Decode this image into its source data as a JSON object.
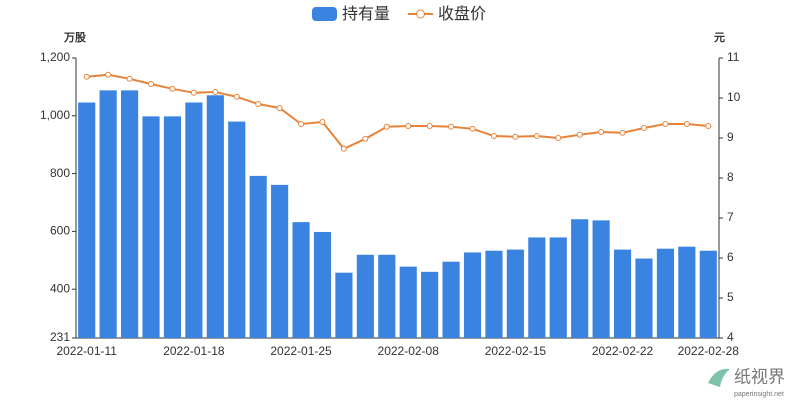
{
  "chart_data": {
    "type": "bar-line",
    "legend": [
      "持有量",
      "收盘价"
    ],
    "y_axis_title": "万股",
    "y2_axis_title": "元",
    "categories": [
      "2022-01-11",
      null,
      null,
      null,
      null,
      "2022-01-18",
      null,
      null,
      null,
      null,
      "2022-01-25",
      null,
      null,
      null,
      null,
      "2022-02-08",
      null,
      null,
      null,
      null,
      "2022-02-15",
      null,
      null,
      null,
      null,
      "2022-02-22",
      null,
      null,
      null,
      "2022-02-28"
    ],
    "series": [
      {
        "name": "持有量",
        "type": "bar",
        "color": "#3a83e0",
        "values": [
          1046,
          1088,
          1088,
          998,
          998,
          1046,
          1071,
          980,
          792,
          761,
          632,
          598,
          457,
          519,
          519,
          478,
          460,
          495,
          527,
          533,
          537,
          579,
          579,
          642,
          638,
          537,
          506,
          540,
          547,
          533
        ]
      },
      {
        "name": "收盘价",
        "type": "line",
        "axis": "y2",
        "color": "#e8833a",
        "values": [
          10.53,
          10.58,
          10.48,
          10.35,
          10.23,
          10.13,
          10.15,
          10.03,
          9.85,
          9.75,
          9.35,
          9.4,
          8.73,
          8.98,
          9.28,
          9.3,
          9.3,
          9.28,
          9.23,
          9.05,
          9.03,
          9.05,
          9.0,
          9.08,
          9.15,
          9.13,
          9.25,
          9.35,
          9.35,
          9.3
        ]
      }
    ],
    "ylim": [
      231,
      1200
    ],
    "yticks": [
      231,
      400,
      600,
      800,
      {
        "value": 1000,
        "label": "1,000"
      },
      {
        "value": 1200,
        "label": "1,200"
      }
    ],
    "y2lim": [
      4,
      11
    ],
    "y2ticks": [
      4,
      5,
      6,
      7,
      8,
      9,
      10,
      11
    ],
    "watermark": {
      "name": "纸视界",
      "url": "paperinsight.net"
    }
  }
}
